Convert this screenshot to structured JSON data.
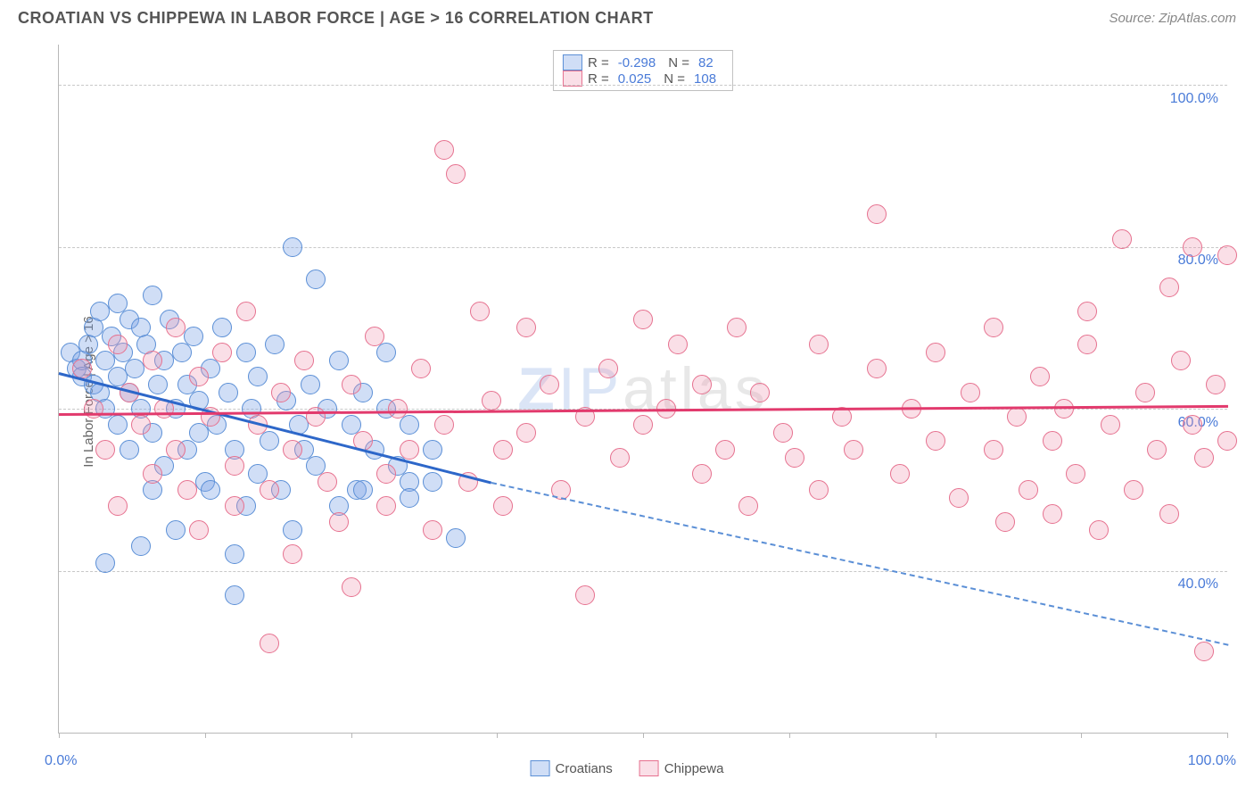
{
  "header": {
    "title": "CROATIAN VS CHIPPEWA IN LABOR FORCE | AGE > 16 CORRELATION CHART",
    "source": "Source: ZipAtlas.com"
  },
  "ylabel": "In Labor Force | Age > 16",
  "watermark": {
    "z": "Z",
    "ip": "IP",
    "atlas": "atlas"
  },
  "chart": {
    "type": "scatter",
    "background_color": "#ffffff",
    "grid_color": "#c8c8c8",
    "axis_color": "#b8b8b8",
    "xlim": [
      0,
      100
    ],
    "ylim": [
      20,
      105
    ],
    "x_tick_positions": [
      0,
      12.5,
      25,
      37.5,
      50,
      62.5,
      75,
      87.5,
      100
    ],
    "x_axis_labels": {
      "left": "0.0%",
      "right": "100.0%"
    },
    "y_gridlines": [
      {
        "value": 40,
        "label": "40.0%"
      },
      {
        "value": 60,
        "label": "60.0%"
      },
      {
        "value": 80,
        "label": "80.0%"
      },
      {
        "value": 100,
        "label": "100.0%"
      }
    ],
    "axis_label_color": "#4a7bd8",
    "axis_label_fontsize": 16,
    "point_radius": 10,
    "series": [
      {
        "name": "Croatians",
        "fill": "rgba(120,160,230,0.35)",
        "stroke": "#5b8fd6",
        "stroke_width": 1.2,
        "trend": {
          "x1": 0,
          "y1": 64.5,
          "x2": 37,
          "y2": 51,
          "solid_color": "#2d67c9",
          "dash_x2": 100,
          "dash_y2": 31,
          "dash_color": "#5b8fd6"
        },
        "stats": {
          "R": "-0.298",
          "N": "82"
        },
        "points": [
          [
            1,
            67
          ],
          [
            1.5,
            65
          ],
          [
            2,
            66
          ],
          [
            2,
            64
          ],
          [
            2.5,
            68
          ],
          [
            3,
            63
          ],
          [
            3,
            70
          ],
          [
            3.5,
            72
          ],
          [
            3.5,
            62
          ],
          [
            4,
            66
          ],
          [
            4,
            60
          ],
          [
            4.5,
            69
          ],
          [
            5,
            73
          ],
          [
            5,
            64
          ],
          [
            5,
            58
          ],
          [
            5.5,
            67
          ],
          [
            6,
            71
          ],
          [
            6,
            62
          ],
          [
            6,
            55
          ],
          [
            6.5,
            65
          ],
          [
            7,
            70
          ],
          [
            7,
            60
          ],
          [
            7.5,
            68
          ],
          [
            8,
            74
          ],
          [
            8,
            57
          ],
          [
            8,
            50
          ],
          [
            8.5,
            63
          ],
          [
            9,
            66
          ],
          [
            9,
            53
          ],
          [
            9.5,
            71
          ],
          [
            10,
            45
          ],
          [
            10,
            60
          ],
          [
            10.5,
            67
          ],
          [
            11,
            63
          ],
          [
            11,
            55
          ],
          [
            11.5,
            69
          ],
          [
            12,
            61
          ],
          [
            12.5,
            51
          ],
          [
            13,
            65
          ],
          [
            13.5,
            58
          ],
          [
            14,
            70
          ],
          [
            14.5,
            62
          ],
          [
            15,
            42
          ],
          [
            15,
            55
          ],
          [
            16,
            67
          ],
          [
            16,
            48
          ],
          [
            16.5,
            60
          ],
          [
            17,
            52
          ],
          [
            17,
            64
          ],
          [
            18,
            56
          ],
          [
            18.5,
            68
          ],
          [
            19,
            50
          ],
          [
            19.5,
            61
          ],
          [
            20,
            80
          ],
          [
            20,
            45
          ],
          [
            20.5,
            58
          ],
          [
            21,
            55
          ],
          [
            21.5,
            63
          ],
          [
            22,
            76
          ],
          [
            22,
            53
          ],
          [
            23,
            60
          ],
          [
            24,
            66
          ],
          [
            24,
            48
          ],
          [
            25,
            58
          ],
          [
            25.5,
            50
          ],
          [
            26,
            62
          ],
          [
            27,
            55
          ],
          [
            28,
            60
          ],
          [
            29,
            53
          ],
          [
            30,
            58
          ],
          [
            15,
            37
          ],
          [
            13,
            50
          ],
          [
            12,
            57
          ],
          [
            4,
            41
          ],
          [
            7,
            43
          ],
          [
            34,
            44
          ],
          [
            32,
            55
          ],
          [
            32,
            51
          ],
          [
            26,
            50
          ],
          [
            28,
            67
          ],
          [
            30,
            51
          ],
          [
            30,
            49
          ]
        ]
      },
      {
        "name": "Chippewa",
        "fill": "rgba(240,150,175,0.30)",
        "stroke": "#e6718f",
        "stroke_width": 1.2,
        "trend": {
          "x1": 0,
          "y1": 59.5,
          "x2": 100,
          "y2": 60.5,
          "solid_color": "#e23a6d"
        },
        "stats": {
          "R": "0.025",
          "N": "108"
        },
        "points": [
          [
            2,
            65
          ],
          [
            3,
            60
          ],
          [
            4,
            55
          ],
          [
            5,
            68
          ],
          [
            5,
            48
          ],
          [
            6,
            62
          ],
          [
            7,
            58
          ],
          [
            8,
            66
          ],
          [
            8,
            52
          ],
          [
            9,
            60
          ],
          [
            10,
            70
          ],
          [
            10,
            55
          ],
          [
            11,
            50
          ],
          [
            12,
            64
          ],
          [
            12,
            45
          ],
          [
            13,
            59
          ],
          [
            14,
            67
          ],
          [
            15,
            53
          ],
          [
            15,
            48
          ],
          [
            16,
            72
          ],
          [
            17,
            58
          ],
          [
            18,
            50
          ],
          [
            18,
            31
          ],
          [
            19,
            62
          ],
          [
            20,
            55
          ],
          [
            20,
            42
          ],
          [
            21,
            66
          ],
          [
            22,
            59
          ],
          [
            23,
            51
          ],
          [
            24,
            46
          ],
          [
            25,
            63
          ],
          [
            25,
            38
          ],
          [
            26,
            56
          ],
          [
            27,
            69
          ],
          [
            28,
            52
          ],
          [
            28,
            48
          ],
          [
            29,
            60
          ],
          [
            30,
            55
          ],
          [
            31,
            65
          ],
          [
            32,
            45
          ],
          [
            33,
            92
          ],
          [
            33,
            58
          ],
          [
            34,
            89
          ],
          [
            35,
            51
          ],
          [
            36,
            72
          ],
          [
            37,
            61
          ],
          [
            38,
            55
          ],
          [
            38,
            48
          ],
          [
            40,
            70
          ],
          [
            40,
            57
          ],
          [
            42,
            63
          ],
          [
            43,
            50
          ],
          [
            45,
            59
          ],
          [
            45,
            37
          ],
          [
            47,
            65
          ],
          [
            48,
            54
          ],
          [
            50,
            71
          ],
          [
            50,
            58
          ],
          [
            52,
            60
          ],
          [
            53,
            68
          ],
          [
            55,
            52
          ],
          [
            55,
            63
          ],
          [
            57,
            55
          ],
          [
            58,
            70
          ],
          [
            59,
            48
          ],
          [
            60,
            62
          ],
          [
            62,
            57
          ],
          [
            63,
            54
          ],
          [
            65,
            68
          ],
          [
            65,
            50
          ],
          [
            67,
            59
          ],
          [
            68,
            55
          ],
          [
            70,
            65
          ],
          [
            70,
            84
          ],
          [
            72,
            52
          ],
          [
            73,
            60
          ],
          [
            75,
            56
          ],
          [
            75,
            67
          ],
          [
            77,
            49
          ],
          [
            78,
            62
          ],
          [
            80,
            70
          ],
          [
            80,
            55
          ],
          [
            81,
            46
          ],
          [
            82,
            59
          ],
          [
            83,
            50
          ],
          [
            84,
            64
          ],
          [
            85,
            56
          ],
          [
            85,
            47
          ],
          [
            86,
            60
          ],
          [
            87,
            52
          ],
          [
            88,
            68
          ],
          [
            89,
            45
          ],
          [
            90,
            58
          ],
          [
            91,
            81
          ],
          [
            92,
            50
          ],
          [
            93,
            62
          ],
          [
            94,
            55
          ],
          [
            95,
            75
          ],
          [
            95,
            47
          ],
          [
            96,
            66
          ],
          [
            97,
            80
          ],
          [
            97,
            58
          ],
          [
            98,
            54
          ],
          [
            98,
            30
          ],
          [
            99,
            63
          ],
          [
            100,
            79
          ],
          [
            100,
            56
          ],
          [
            88,
            72
          ]
        ]
      }
    ]
  },
  "legend": {
    "croatians_label": "Croatians",
    "chippewa_label": "Chippewa"
  },
  "stats_labels": {
    "R": "R =",
    "N": "N ="
  }
}
